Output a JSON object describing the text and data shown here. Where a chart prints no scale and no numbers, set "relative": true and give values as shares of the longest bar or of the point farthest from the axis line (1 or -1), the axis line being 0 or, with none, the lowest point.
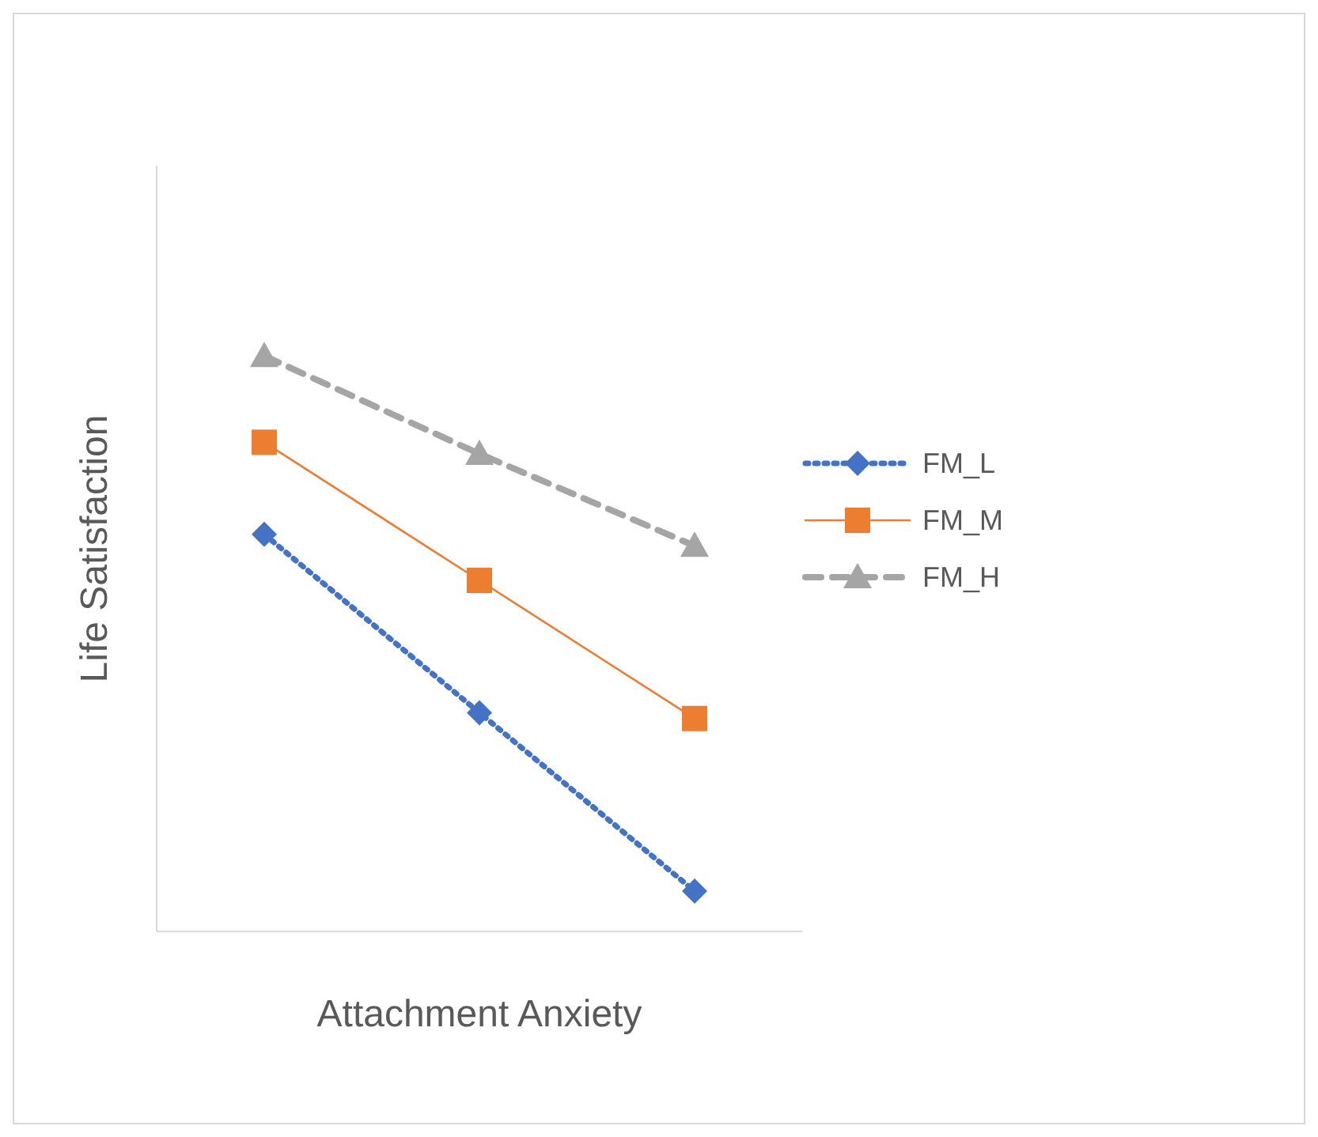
{
  "chart_data": {
    "type": "line",
    "relative": true,
    "xlabel": "Attachment Anxiety",
    "ylabel": "Life Satisfaction",
    "categories": [
      null,
      null,
      null
    ],
    "legend": "right",
    "grid": false,
    "series": [
      {
        "name": "FM_L",
        "color": "#4472c4",
        "values": [
          0.69,
          0.38,
          0.07
        ],
        "marker": "diamond",
        "line_style": "dotted"
      },
      {
        "name": "FM_M",
        "color": "#ed7d31",
        "values": [
          0.85,
          0.61,
          0.37
        ],
        "marker": "square",
        "line_style": "solid"
      },
      {
        "name": "FM_H",
        "color": "#a5a5a5",
        "values": [
          1,
          0.83,
          0.67
        ],
        "marker": "triangle",
        "line_style": "dashed"
      }
    ]
  }
}
